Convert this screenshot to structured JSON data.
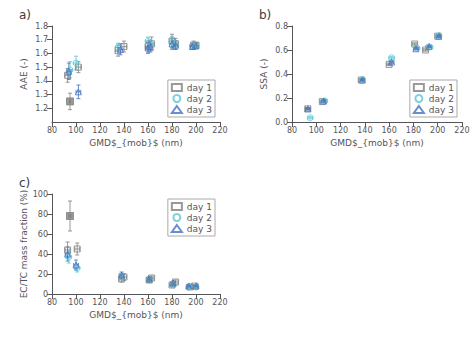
{
  "chart_data": [
    {
      "type": "scatter",
      "title": "a)",
      "x_label": "GMD$_{mob}$ (nm)",
      "y_label": "AAE (-)",
      "xlim": [
        80,
        220
      ],
      "ylim": [
        1.1,
        1.8
      ],
      "xticks": [
        80,
        100,
        120,
        140,
        160,
        180,
        200,
        220
      ],
      "yticks": [
        1.2,
        1.3,
        1.4,
        1.5,
        1.6,
        1.7,
        1.8
      ],
      "grid": false,
      "legend": "lower right",
      "series": [
        {
          "name": "day 1",
          "color": "#808080",
          "marker": "square",
          "x": [
            93,
            102,
            135,
            140,
            160,
            163,
            180,
            183,
            198,
            200
          ],
          "values": [
            1.44,
            1.5,
            1.62,
            1.65,
            1.65,
            1.67,
            1.69,
            1.67,
            1.66,
            1.66
          ],
          "xerr": [
            2,
            2,
            2,
            2,
            2,
            2,
            2,
            2,
            2,
            2
          ],
          "yerr": [
            0.05,
            0.04,
            0.04,
            0.04,
            0.04,
            0.05,
            0.05,
            0.04,
            0.03,
            0.02
          ]
        },
        {
          "color": "#808080",
          "marker": "filled_square",
          "x": [
            95
          ],
          "values": [
            1.25
          ],
          "xerr": [
            0.5
          ],
          "yerr": [
            0.06
          ]
        },
        {
          "name": "day 2",
          "color": "#5bc8d5",
          "marker": "circle",
          "x": [
            95,
            100,
            135,
            160,
            162,
            180,
            183,
            197,
            200
          ],
          "values": [
            1.48,
            1.53,
            1.645,
            1.69,
            1.67,
            1.685,
            1.66,
            1.655,
            1.655
          ],
          "xerr": [
            2,
            2,
            2,
            2,
            2,
            2,
            2,
            2,
            2
          ],
          "yerr": [
            0.06,
            0.05,
            0.03,
            0.03,
            0.03,
            0.04,
            0.03,
            0.02,
            0.02
          ]
        },
        {
          "name": "day 3",
          "color": "#4472c4",
          "marker": "triangle",
          "x": [
            94,
            102,
            137,
            160,
            162,
            180,
            183,
            197,
            200
          ],
          "values": [
            1.47,
            1.32,
            1.63,
            1.64,
            1.65,
            1.67,
            1.66,
            1.65,
            1.655
          ],
          "xerr": [
            2,
            2,
            2,
            2,
            2,
            2,
            2,
            2,
            2
          ],
          "yerr": [
            0.06,
            0.05,
            0.04,
            0.04,
            0.04,
            0.04,
            0.03,
            0.02,
            0.02
          ]
        }
      ]
    },
    {
      "type": "scatter",
      "title": "b)",
      "x_label": "GMD$_{mob}$ (nm)",
      "y_label": "SSA (-)",
      "xlim": [
        80,
        220
      ],
      "ylim": [
        0.0,
        0.8
      ],
      "xticks": [
        80,
        100,
        120,
        140,
        160,
        180,
        200,
        220
      ],
      "yticks": [
        {
          "value": 0.0,
          "label": "0.0"
        },
        0.2,
        0.4,
        0.6,
        0.8
      ],
      "grid": false,
      "legend": "lower right",
      "series": [
        {
          "name": "day 1",
          "color": "#808080",
          "marker": "square",
          "x": [
            93,
            105,
            137,
            160,
            181,
            190,
            200
          ],
          "values": [
            0.11,
            0.17,
            0.35,
            0.48,
            0.65,
            0.6,
            0.715
          ],
          "xerr": [
            2,
            2,
            2,
            2,
            2,
            2,
            2
          ],
          "yerr": [
            0.01,
            0.01,
            0.01,
            0.01,
            0.01,
            0.01,
            0.01
          ]
        },
        {
          "name": "day 2",
          "color": "#5bc8d5",
          "marker": "circle",
          "x": [
            95,
            107,
            138,
            162,
            183,
            193,
            201
          ],
          "values": [
            0.035,
            0.175,
            0.355,
            0.535,
            0.615,
            0.625,
            0.72
          ],
          "xerr": [
            2,
            2,
            2,
            2,
            2,
            3,
            2
          ],
          "yerr": [
            0.01,
            0.01,
            0.01,
            0.01,
            0.01,
            0.01,
            0.01
          ]
        },
        {
          "name": "day 3",
          "color": "#4472c4",
          "marker": "triangle",
          "x": [
            93,
            106,
            138,
            162,
            182,
            193,
            201
          ],
          "values": [
            0.11,
            0.175,
            0.35,
            0.5,
            0.61,
            0.63,
            0.715
          ],
          "xerr": [
            2,
            2,
            2,
            2,
            2,
            2,
            2
          ],
          "yerr": [
            0.01,
            0.01,
            0.01,
            0.01,
            0.01,
            0.01,
            0.01
          ]
        }
      ]
    },
    {
      "type": "scatter",
      "title": "c)",
      "x_label": "GMD$_{mob}$ (nm)",
      "y_label": "EC/TC mass fraction (%)",
      "xlim": [
        80,
        220
      ],
      "ylim": [
        0,
        100
      ],
      "xticks": [
        80,
        100,
        120,
        140,
        160,
        180,
        200,
        220
      ],
      "yticks": [
        0,
        20,
        40,
        60,
        80,
        100
      ],
      "grid": false,
      "legend": "upper right",
      "series": [
        {
          "name": "day 1",
          "color": "#808080",
          "marker": "square",
          "x": [
            93,
            101,
            138,
            140,
            161,
            163,
            180,
            183,
            195,
            199
          ],
          "values": [
            44,
            45,
            15,
            17,
            14,
            16,
            9,
            12,
            7,
            8
          ],
          "xerr": [
            2,
            2,
            2,
            2,
            2,
            2,
            2,
            2,
            2,
            2
          ],
          "yerr": [
            8,
            6,
            3,
            3,
            2,
            2,
            2,
            2,
            1,
            1
          ]
        },
        {
          "color": "#808080",
          "marker": "filled_square",
          "x": [
            95
          ],
          "values": [
            78
          ],
          "xerr": [
            1
          ],
          "yerr": [
            15
          ]
        },
        {
          "name": "day 2",
          "color": "#5bc8d5",
          "marker": "circle",
          "x": [
            94,
            101,
            138,
            161,
            181,
            194,
            200
          ],
          "values": [
            37,
            26,
            17,
            14,
            9,
            7,
            7
          ],
          "xerr": [
            2,
            2,
            2,
            2,
            2,
            2,
            2
          ],
          "yerr": [
            6,
            4,
            3,
            2,
            2,
            1,
            1
          ]
        },
        {
          "name": "day 3",
          "color": "#4472c4",
          "marker": "triangle",
          "x": [
            93,
            100,
            138,
            161,
            181,
            194,
            200
          ],
          "values": [
            40,
            29,
            19,
            15,
            11,
            8,
            8
          ],
          "xerr": [
            2,
            2,
            2,
            2,
            2,
            2,
            2
          ],
          "yerr": [
            7,
            5,
            3,
            2,
            2,
            1,
            1
          ]
        }
      ]
    }
  ]
}
